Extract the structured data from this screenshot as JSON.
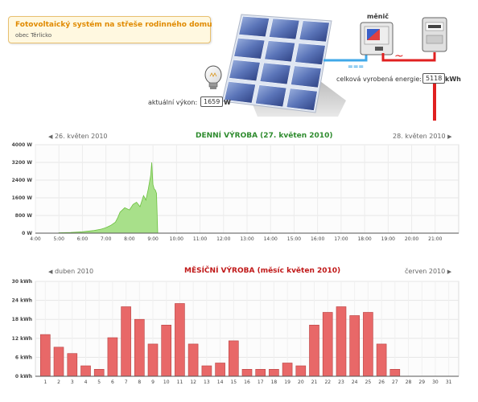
{
  "header": {
    "title": "Fotovoltaický systém na střeše rodinného domu",
    "subtitle": "obec Těrlicko"
  },
  "diagram": {
    "inverter_label": "měnič",
    "power_label": "aktuální výkon:",
    "power_value": "1659",
    "power_unit": "W",
    "energy_label": "celková vyrobená energie:",
    "energy_value": "5118",
    "energy_unit": "kWh",
    "dc_symbol": "===",
    "ac_symbol": "~"
  },
  "daily": {
    "prev_label": "26. květen 2010",
    "next_label": "28. květen 2010",
    "title": "DENNÍ VÝROBA (27. květen 2010)",
    "prev_arrow": "◀",
    "next_arrow": "▶"
  },
  "monthly": {
    "prev_label": "duben 2010",
    "next_label": "červen 2010",
    "title": "MĚSÍČNÍ VÝROBA (měsíc květen 2010)",
    "prev_arrow": "◀",
    "next_arrow": "▶"
  },
  "colors": {
    "area_fill": "#a8e08a",
    "area_stroke": "#6cc040",
    "bar_fill": "#e86868",
    "bar_stroke": "#b84040"
  },
  "chart_data": [
    {
      "type": "area",
      "x_ticks": [
        "4:00",
        "5:00",
        "6:00",
        "7:00",
        "8:00",
        "9:00",
        "10:00",
        "11:00",
        "12:00",
        "13:00",
        "14:00",
        "15:00",
        "16:00",
        "17:00",
        "18:00",
        "19:00",
        "20:00",
        "21:00"
      ],
      "y_ticks": [
        "0 W",
        "800 W",
        "1600 W",
        "2400 W",
        "3200 W",
        "4000 W"
      ],
      "ylim": [
        0,
        4000
      ],
      "xlim": [
        4,
        22
      ],
      "x": [
        5.0,
        5.5,
        6.0,
        6.5,
        6.8,
        7.0,
        7.2,
        7.4,
        7.5,
        7.6,
        7.8,
        8.0,
        8.15,
        8.3,
        8.45,
        8.6,
        8.7,
        8.8,
        8.9,
        8.95,
        9.0,
        9.05,
        9.1,
        9.15,
        9.2
      ],
      "y": [
        20,
        30,
        60,
        120,
        180,
        250,
        350,
        500,
        700,
        950,
        1150,
        1050,
        1300,
        1400,
        1200,
        1700,
        1500,
        2000,
        2600,
        3200,
        2200,
        2000,
        1950,
        1800,
        0
      ]
    },
    {
      "type": "bar",
      "categories": [
        "1",
        "2",
        "3",
        "4",
        "5",
        "6",
        "7",
        "8",
        "9",
        "10",
        "11",
        "12",
        "13",
        "14",
        "15",
        "16",
        "17",
        "18",
        "19",
        "20",
        "21",
        "22",
        "23",
        "24",
        "25",
        "26",
        "27",
        "28",
        "29",
        "30",
        "31"
      ],
      "values": [
        13.2,
        9.2,
        7.2,
        3.3,
        2.2,
        12.2,
        22,
        18,
        10.2,
        16.2,
        23,
        10.2,
        3.3,
        4.2,
        11.2,
        2.2,
        2.2,
        2.2,
        4.2,
        3.3,
        16.2,
        20.2,
        22,
        19.2,
        20.2,
        10.2,
        2.2,
        0,
        0,
        0,
        0
      ],
      "y_ticks": [
        "0 kWh",
        "6 kWh",
        "12 kWh",
        "18 kWh",
        "24 kWh",
        "30 kWh"
      ],
      "ylim": [
        0,
        30
      ]
    }
  ]
}
